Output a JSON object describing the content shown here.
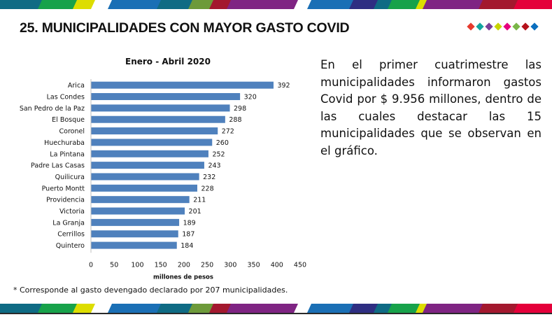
{
  "page": {
    "title": "25. MUNICIPALIDADES CON MAYOR GASTO COVID",
    "description": "En el primer cuatrimestre las municipalidades informaron gastos Covid por $ 9.956 millones, dentro de las cuales destacar las 15 municipalidades que se observan en el gráfico.",
    "footnote": "* Corresponde al gasto devengado declarado por 207 municipalidades.",
    "diamond_colors": [
      "#e63b2e",
      "#12a5a0",
      "#7b3f98",
      "#c8d400",
      "#e6007e",
      "#7ab648",
      "#b5121b",
      "#0b6fbf"
    ],
    "stripe_colors": [
      "#0f6b84",
      "#17a24a",
      "#dddd00",
      "#1a6fb5",
      "#6d9a3a",
      "#7f2483",
      "#8b3a8f",
      "#2e2e82",
      "#a3182e",
      "#e4003a"
    ]
  },
  "chart_data": {
    "type": "bar",
    "orientation": "horizontal",
    "title": "Enero - Abril 2020",
    "xlabel": "millones de pesos",
    "ylabel": "",
    "categories": [
      "Arica",
      "Las Condes",
      "San Pedro de la Paz",
      "El Bosque",
      "Coronel",
      "Huechuraba",
      "La Pintana",
      "Padre Las Casas",
      "Quilicura",
      "Puerto Montt",
      "Providencia",
      "Victoria",
      "La Granja",
      "Cerrillos",
      "Quintero"
    ],
    "values": [
      392,
      320,
      298,
      288,
      272,
      260,
      252,
      243,
      232,
      228,
      211,
      201,
      189,
      187,
      184
    ],
    "xlim": [
      0,
      450
    ],
    "xticks": [
      0,
      50,
      100,
      150,
      200,
      250,
      300,
      350,
      400,
      450
    ],
    "bar_color": "#4f81bd",
    "grid": false,
    "data_labels": true,
    "legend": "none"
  }
}
